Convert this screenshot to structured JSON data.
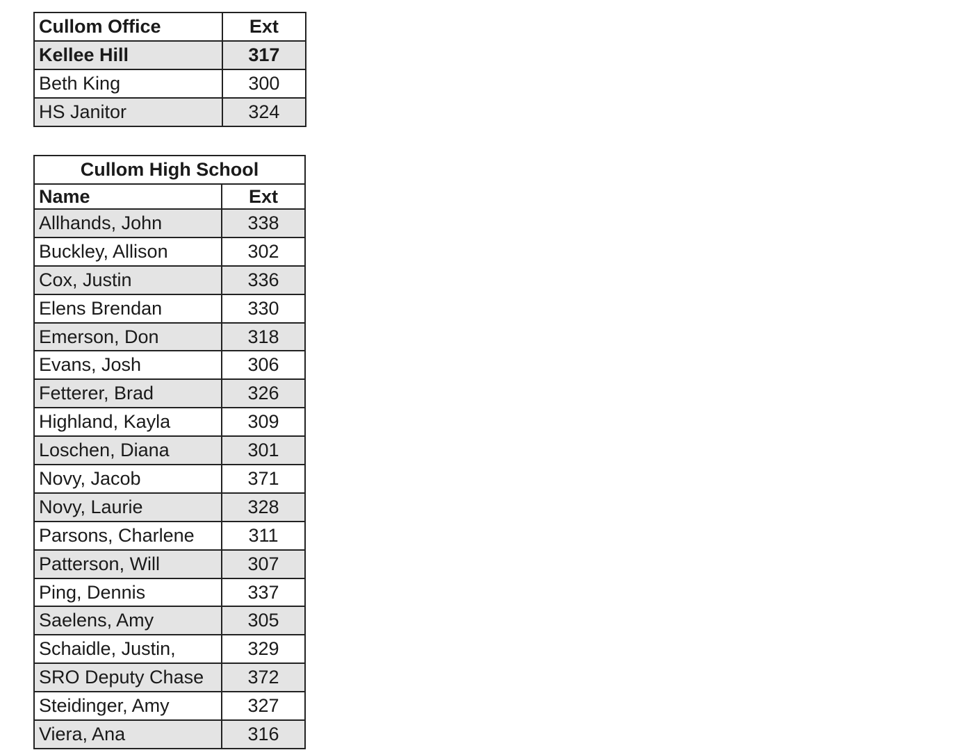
{
  "office_table": {
    "header": {
      "name": "Cullom Office",
      "ext": "Ext"
    },
    "rows": [
      {
        "name": "Kellee Hill",
        "ext": "317",
        "bold": true
      },
      {
        "name": "Beth King",
        "ext": "300"
      },
      {
        "name": "HS Janitor",
        "ext": "324"
      }
    ]
  },
  "high_school_table": {
    "title": "Cullom High School",
    "header": {
      "name": "Name",
      "ext": "Ext"
    },
    "rows": [
      {
        "name": "Allhands, John",
        "ext": "338"
      },
      {
        "name": "Buckley, Allison",
        "ext": "302"
      },
      {
        "name": "Cox, Justin",
        "ext": "336"
      },
      {
        "name": "Elens Brendan",
        "ext": "330"
      },
      {
        "name": "Emerson, Don",
        "ext": "318"
      },
      {
        "name": "Evans, Josh",
        "ext": "306"
      },
      {
        "name": "Fetterer, Brad",
        "ext": "326"
      },
      {
        "name": "Highland, Kayla",
        "ext": "309"
      },
      {
        "name": "Loschen, Diana",
        "ext": "301"
      },
      {
        "name": "Novy, Jacob",
        "ext": "371"
      },
      {
        "name": "Novy, Laurie",
        "ext": "328"
      },
      {
        "name": "Parsons, Charlene",
        "ext": "311"
      },
      {
        "name": "Patterson, Will",
        "ext": "307"
      },
      {
        "name": "Ping, Dennis",
        "ext": "337"
      },
      {
        "name": "Saelens, Amy",
        "ext": "305"
      },
      {
        "name": "Schaidle, Justin,",
        "ext": "329"
      },
      {
        "name": "SRO Deputy Chase",
        "ext": "372"
      },
      {
        "name": "Steidinger, Amy",
        "ext": "327"
      },
      {
        "name": "Viera, Ana",
        "ext": "316"
      }
    ]
  },
  "colors": {
    "shade": "#e4e4e4",
    "border": "#222222"
  }
}
